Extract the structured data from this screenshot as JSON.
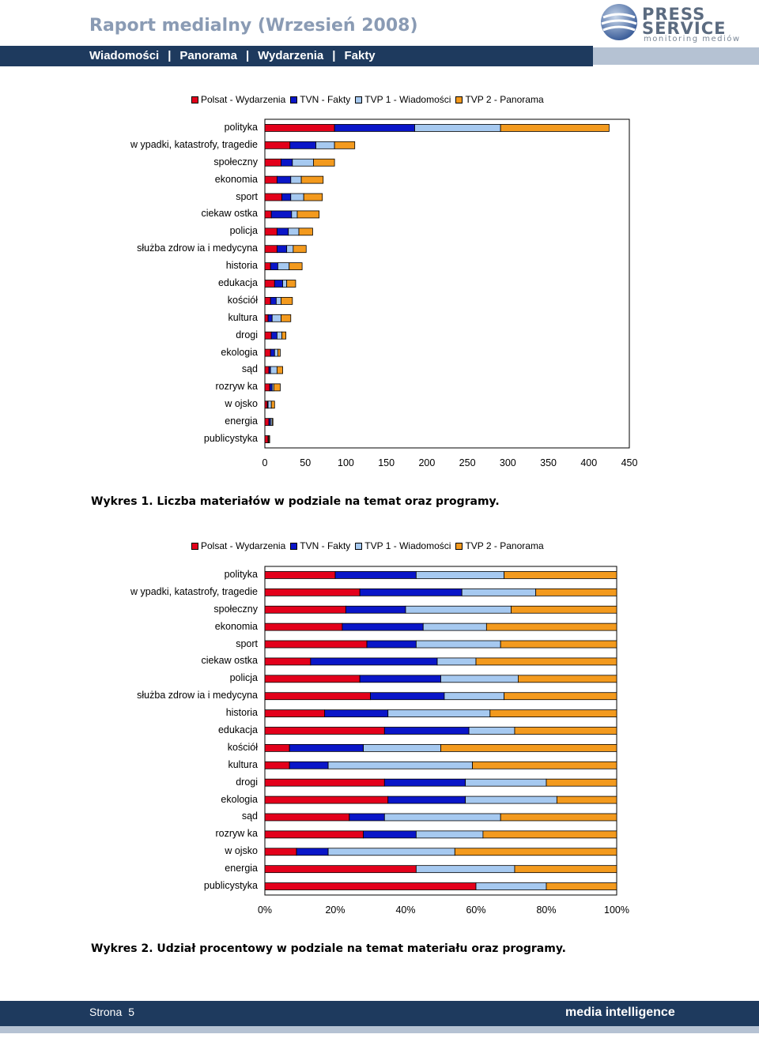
{
  "header": {
    "title": "Raport medialny (Wrzesień 2008)",
    "logo": {
      "line1": "PRESS",
      "line2": "SERVICE",
      "tagline": "monitoring mediów",
      "icon": "globe-icon"
    }
  },
  "nav": {
    "items": [
      "Wiadomości",
      "Panorama",
      "Wydarzenia",
      "Fakty"
    ],
    "separator": "|"
  },
  "legend": [
    {
      "name": "Polsat - Wydarzenia",
      "color": "#e3001b"
    },
    {
      "name": "TVN - Fakty",
      "color": "#0a16c8"
    },
    {
      "name": "TVP 1 - Wiadomości",
      "color": "#a6c9f0"
    },
    {
      "name": "TVP 2 - Panorama",
      "color": "#f39a1e"
    }
  ],
  "chart_data": [
    {
      "type": "bar",
      "stacked": true,
      "orientation": "horizontal",
      "categories": [
        "polityka",
        "w ypadki, katastrofy, tragedie",
        "społeczny",
        "ekonomia",
        "sport",
        "ciekaw ostka",
        "policja",
        "służba zdrow ia i medycyna",
        "historia",
        "edukacja",
        "kościół",
        "kultura",
        "drogi",
        "ekologia",
        "sąd",
        "rozryw ka",
        "w ojsko",
        "energia",
        "publicystyka"
      ],
      "series": [
        {
          "name": "Polsat - Wydarzenia",
          "values": [
            86,
            31,
            20,
            15,
            21,
            8,
            15,
            15,
            7,
            12,
            7,
            4,
            8,
            7,
            5,
            6,
            3,
            5,
            4
          ]
        },
        {
          "name": "TVN - Fakty",
          "values": [
            99,
            32,
            14,
            17,
            11,
            25,
            14,
            12,
            9,
            10,
            7,
            5,
            7,
            5,
            2,
            3,
            1,
            2,
            0
          ]
        },
        {
          "name": "TVP 1 - Wiadomości",
          "values": [
            106,
            23,
            26,
            13,
            16,
            7,
            13,
            8,
            14,
            5,
            6,
            11,
            6,
            4,
            8,
            2,
            4,
            2,
            1
          ]
        },
        {
          "name": "TVP 2 - Panorama",
          "values": [
            134,
            25,
            26,
            27,
            23,
            27,
            17,
            16,
            16,
            11,
            14,
            12,
            5,
            3,
            7,
            8,
            4,
            1,
            1
          ]
        }
      ],
      "xlim": [
        0,
        450
      ],
      "xticks": [
        "0",
        "50",
        "100",
        "150",
        "200",
        "250",
        "300",
        "350",
        "400",
        "450"
      ],
      "caption": "Wykres 1. Liczba materiałów w podziale na temat oraz programy.",
      "legend_position": "top"
    },
    {
      "type": "bar",
      "stacked": true,
      "percent": true,
      "orientation": "horizontal",
      "categories": [
        "polityka",
        "w ypadki, katastrofy, tragedie",
        "społeczny",
        "ekonomia",
        "sport",
        "ciekaw ostka",
        "policja",
        "służba zdrow ia i medycyna",
        "historia",
        "edukacja",
        "kościół",
        "kultura",
        "drogi",
        "ekologia",
        "sąd",
        "rozryw ka",
        "w ojsko",
        "energia",
        "publicystyka"
      ],
      "series": [
        {
          "name": "Polsat - Wydarzenia",
          "values": [
            20,
            27,
            23,
            22,
            29,
            13,
            27,
            30,
            17,
            34,
            7,
            7,
            34,
            35,
            24,
            28,
            9,
            43,
            60
          ]
        },
        {
          "name": "TVN - Fakty",
          "values": [
            23,
            29,
            17,
            23,
            14,
            36,
            23,
            21,
            18,
            24,
            21,
            11,
            23,
            22,
            10,
            15,
            9,
            0,
            0
          ]
        },
        {
          "name": "TVP 1 - Wiadomości",
          "values": [
            25,
            21,
            30,
            18,
            24,
            11,
            22,
            17,
            29,
            13,
            22,
            41,
            23,
            26,
            33,
            19,
            36,
            28,
            20
          ]
        },
        {
          "name": "TVP 2 - Panorama",
          "values": [
            32,
            23,
            30,
            37,
            33,
            40,
            28,
            32,
            36,
            29,
            50,
            41,
            20,
            17,
            33,
            38,
            46,
            29,
            20
          ]
        }
      ],
      "xlim": [
        0,
        100
      ],
      "xticks": [
        "0%",
        "20%",
        "40%",
        "60%",
        "80%",
        "100%"
      ],
      "caption": "Wykres 2. Udział procentowy w podziale na temat materiału oraz programy.",
      "legend_position": "top"
    }
  ],
  "footer": {
    "page_label": "Strona",
    "page_number": "5",
    "brand": "media intelligence"
  }
}
